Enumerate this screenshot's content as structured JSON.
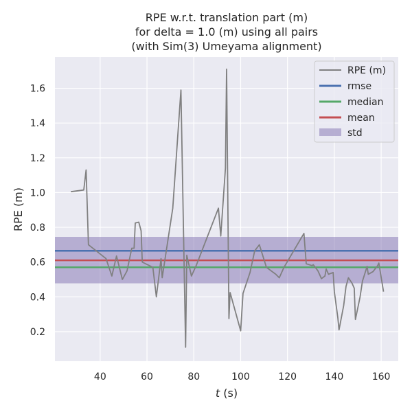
{
  "chart_data": {
    "type": "line",
    "title_lines": [
      "RPE w.r.t. translation part (m)",
      "for delta = 1.0 (m) using all pairs",
      "(with Sim(3) Umeyama alignment)"
    ],
    "xlabel_var": "t",
    "xlabel_unit": " (s)",
    "ylabel": "RPE (m)",
    "xlim": [
      20.7,
      167.3
    ],
    "ylim": [
      0.03,
      1.78
    ],
    "xticks": [
      40,
      60,
      80,
      100,
      120,
      140,
      160
    ],
    "yticks": [
      0.2,
      0.4,
      0.6,
      0.8,
      1.0,
      1.2,
      1.4,
      1.6
    ],
    "ytick_labels": [
      "0.2",
      "0.4",
      "0.6",
      "0.8",
      "1.0",
      "1.2",
      "1.4",
      "1.6"
    ],
    "grid": true,
    "legend_position": "top-right",
    "colors": {
      "background": "#eaeaf2",
      "grid": "#ffffff",
      "rpe": "#808080",
      "rmse": "#4c72b0",
      "median": "#55a868",
      "mean": "#c44e52",
      "std": "#8172b2"
    },
    "stats": {
      "rmse": 0.665,
      "median": 0.57,
      "mean": 0.61,
      "std_low": 0.478,
      "std_high": 0.745
    },
    "legend": {
      "rpe": "RPE (m)",
      "rmse": "rmse",
      "median": "median",
      "mean": "mean",
      "std": "std"
    },
    "series": [
      {
        "name": "RPE (m)",
        "x": [
          27.5,
          33.0,
          34.0,
          35.0,
          42.5,
          45.0,
          47.0,
          49.5,
          51.5,
          53.5,
          54.5,
          55.0,
          56.5,
          57.5,
          58.0,
          62.5,
          64.0,
          66.0,
          66.5,
          71.0,
          74.5,
          76.5,
          77.0,
          79.0,
          81.0,
          90.5,
          91.5,
          93.5,
          94.0,
          95.0,
          95.5,
          100.0,
          101.0,
          104.0,
          106.0,
          108.0,
          111.0,
          115.0,
          116.5,
          118.5,
          127.0,
          128.0,
          130.5,
          131.0,
          133.0,
          134.5,
          136.0,
          136.5,
          137.5,
          139.5,
          140.0,
          141.5,
          142.0,
          144.0,
          145.0,
          146.0,
          147.5,
          148.5,
          149.0,
          151.0,
          152.0,
          154.0,
          154.5,
          156.5,
          158.5,
          159.0,
          161.0
        ],
        "y": [
          1.005,
          1.015,
          1.13,
          0.7,
          0.62,
          0.52,
          0.635,
          0.5,
          0.55,
          0.68,
          0.68,
          0.825,
          0.83,
          0.78,
          0.6,
          0.57,
          0.4,
          0.62,
          0.51,
          0.91,
          1.59,
          0.11,
          0.64,
          0.52,
          0.58,
          0.91,
          0.75,
          1.14,
          1.71,
          0.275,
          0.425,
          0.205,
          0.42,
          0.54,
          0.665,
          0.7,
          0.57,
          0.53,
          0.51,
          0.57,
          0.765,
          0.59,
          0.58,
          0.585,
          0.55,
          0.505,
          0.52,
          0.56,
          0.53,
          0.54,
          0.43,
          0.28,
          0.21,
          0.35,
          0.46,
          0.51,
          0.48,
          0.45,
          0.27,
          0.4,
          0.49,
          0.575,
          0.53,
          0.545,
          0.58,
          0.595,
          0.43
        ]
      }
    ]
  }
}
